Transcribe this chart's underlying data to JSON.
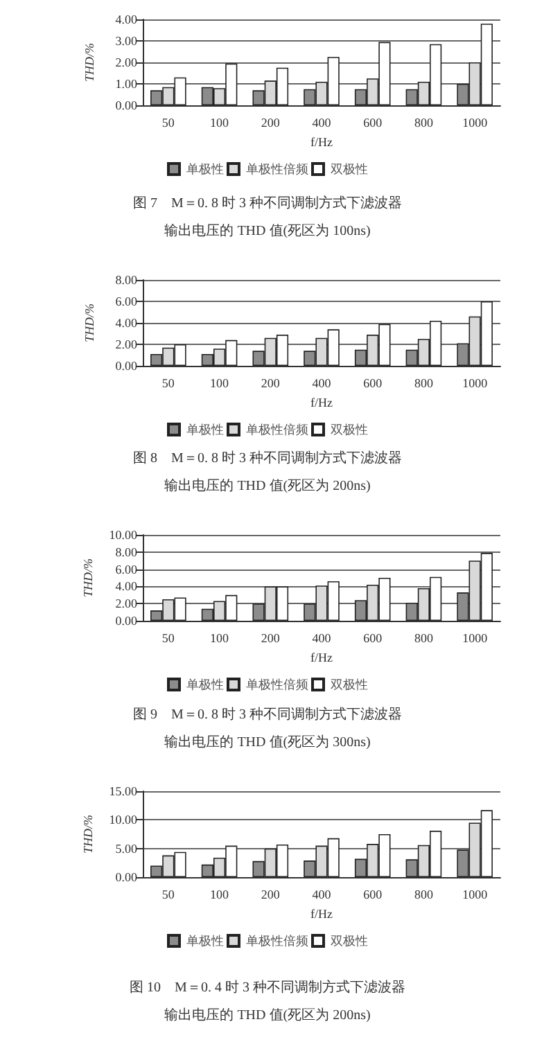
{
  "chart_data": [
    {
      "type": "bar",
      "title": "图 7　M＝0. 8 时 3 种不同调制方式下滤波器输出电压的 THD 值(死区为 100ns)",
      "xlabel": "f/Hz",
      "ylabel": "THD/%",
      "categories": [
        "50",
        "100",
        "200",
        "400",
        "600",
        "800",
        "1000"
      ],
      "series": [
        {
          "name": "单极性",
          "color": "#8c8c8c",
          "values": [
            0.7,
            0.85,
            0.7,
            0.75,
            0.75,
            0.75,
            1.0
          ]
        },
        {
          "name": "单极性倍频",
          "color": "#d9d9d9",
          "values": [
            0.85,
            0.8,
            1.15,
            1.1,
            1.25,
            1.1,
            2.0
          ]
        },
        {
          "name": "双极性",
          "color": "#ffffff",
          "values": [
            1.3,
            1.95,
            1.75,
            2.25,
            2.95,
            2.85,
            3.8
          ]
        }
      ],
      "ylim": [
        0,
        4
      ],
      "yticks": [
        {
          "value": 0,
          "label": "0.00"
        },
        {
          "value": 1,
          "label": "1.00"
        },
        {
          "value": 2,
          "label": "2.00"
        },
        {
          "value": 3,
          "label": "3.00"
        },
        {
          "value": 4,
          "label": "4.00"
        }
      ],
      "grid": "y",
      "legend": "bottom"
    },
    {
      "type": "bar",
      "title": "图 8　M＝0. 8 时 3 种不同调制方式下滤波器输出电压的 THD 值(死区为 200ns)",
      "xlabel": "f/Hz",
      "ylabel": "THD/%",
      "categories": [
        "50",
        "100",
        "200",
        "400",
        "600",
        "800",
        "1000"
      ],
      "series": [
        {
          "name": "单极性",
          "color": "#8c8c8c",
          "values": [
            1.1,
            1.1,
            1.4,
            1.4,
            1.5,
            1.5,
            2.1
          ]
        },
        {
          "name": "单极性倍频",
          "color": "#d9d9d9",
          "values": [
            1.7,
            1.6,
            2.6,
            2.6,
            2.9,
            2.5,
            4.6
          ]
        },
        {
          "name": "双极性",
          "color": "#ffffff",
          "values": [
            2.0,
            2.4,
            2.9,
            3.4,
            3.9,
            4.2,
            6.0
          ]
        }
      ],
      "ylim": [
        0,
        8
      ],
      "yticks": [
        {
          "value": 0,
          "label": "0.00"
        },
        {
          "value": 2,
          "label": "2.00"
        },
        {
          "value": 4,
          "label": "4.00"
        },
        {
          "value": 6,
          "label": "6.00"
        },
        {
          "value": 8,
          "label": "8.00"
        }
      ],
      "grid": "y",
      "legend": "bottom"
    },
    {
      "type": "bar",
      "title": "图 9　M＝0. 8 时 3 种不同调制方式下滤波器输出电压的 THD 值(死区为 300ns)",
      "xlabel": "f/Hz",
      "ylabel": "THD/%",
      "categories": [
        "50",
        "100",
        "200",
        "400",
        "600",
        "800",
        "1000"
      ],
      "series": [
        {
          "name": "单极性",
          "color": "#8c8c8c",
          "values": [
            1.2,
            1.4,
            2.0,
            2.0,
            2.4,
            2.1,
            3.3
          ]
        },
        {
          "name": "单极性倍频",
          "color": "#d9d9d9",
          "values": [
            2.5,
            2.3,
            4.0,
            4.1,
            4.2,
            3.8,
            7.0
          ]
        },
        {
          "name": "双极性",
          "color": "#ffffff",
          "values": [
            2.7,
            3.0,
            4.0,
            4.6,
            5.0,
            5.1,
            7.9
          ]
        }
      ],
      "ylim": [
        0,
        10
      ],
      "yticks": [
        {
          "value": 0,
          "label": "0.00"
        },
        {
          "value": 2,
          "label": "2.00"
        },
        {
          "value": 4,
          "label": "4.00"
        },
        {
          "value": 6,
          "label": "6.00"
        },
        {
          "value": 8,
          "label": "8.00"
        },
        {
          "value": 10,
          "label": "10.00"
        }
      ],
      "grid": "y",
      "legend": "bottom"
    },
    {
      "type": "bar",
      "title": "图 10　M＝0. 4 时 3 种不同调制方式下滤波器输出电压的 THD 值(死区为 200ns)",
      "xlabel": "f/Hz",
      "ylabel": "THD/%",
      "categories": [
        "50",
        "100",
        "200",
        "400",
        "600",
        "800",
        "1000"
      ],
      "series": [
        {
          "name": "单极性",
          "color": "#8c8c8c",
          "values": [
            2.0,
            2.2,
            2.8,
            2.9,
            3.2,
            3.1,
            4.8
          ]
        },
        {
          "name": "单极性倍频",
          "color": "#d9d9d9",
          "values": [
            3.8,
            3.4,
            5.0,
            5.5,
            5.8,
            5.6,
            9.5
          ]
        },
        {
          "name": "双极性",
          "color": "#ffffff",
          "values": [
            4.4,
            5.5,
            5.7,
            6.8,
            7.5,
            8.1,
            11.7
          ]
        }
      ],
      "ylim": [
        0,
        15
      ],
      "yticks": [
        {
          "value": 0,
          "label": "0.00"
        },
        {
          "value": 5,
          "label": "5.00"
        },
        {
          "value": 10,
          "label": "10.00"
        },
        {
          "value": 15,
          "label": "15.00"
        }
      ],
      "grid": "y",
      "legend": "bottom"
    }
  ]
}
